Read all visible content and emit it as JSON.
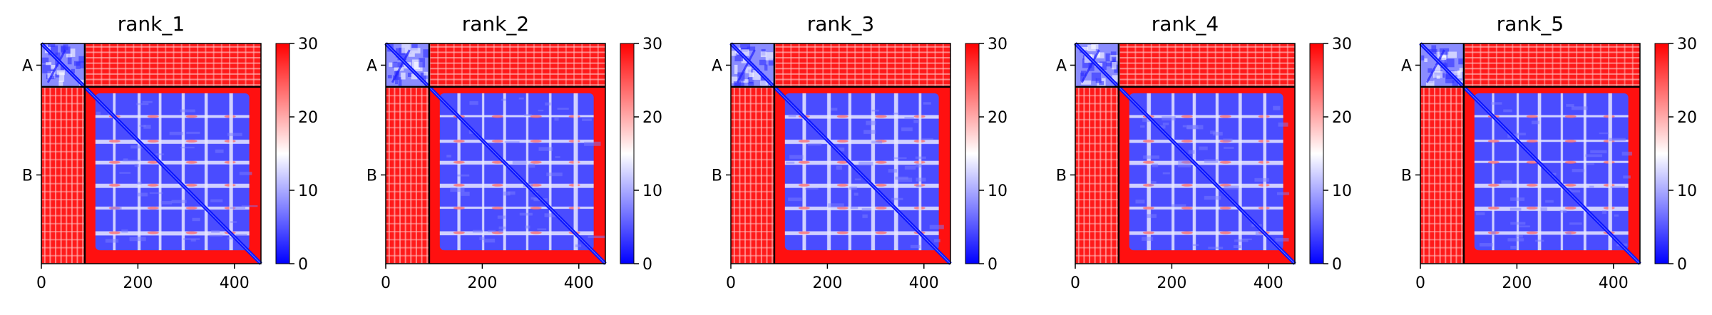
{
  "chart_data": [
    {
      "type": "heatmap",
      "title": "rank_1",
      "xlabel": "",
      "ylabel": "",
      "xlim": [
        0,
        455
      ],
      "x_ticks": [
        0,
        200,
        400
      ],
      "chains": [
        {
          "label": "A",
          "start": 0,
          "end": 90
        },
        {
          "label": "B",
          "start": 90,
          "end": 455
        }
      ],
      "boundary": 90,
      "colorbar": {
        "min": 0,
        "max": 30,
        "ticks": [
          0,
          10,
          20,
          30
        ],
        "colors": [
          "#0000ff",
          "#ffffff",
          "#ff0000"
        ]
      }
    },
    {
      "type": "heatmap",
      "title": "rank_2",
      "xlabel": "",
      "ylabel": "",
      "xlim": [
        0,
        455
      ],
      "x_ticks": [
        0,
        200,
        400
      ],
      "chains": [
        {
          "label": "A",
          "start": 0,
          "end": 90
        },
        {
          "label": "B",
          "start": 90,
          "end": 455
        }
      ],
      "boundary": 90,
      "colorbar": {
        "min": 0,
        "max": 30,
        "ticks": [
          0,
          10,
          20,
          30
        ],
        "colors": [
          "#0000ff",
          "#ffffff",
          "#ff0000"
        ]
      }
    },
    {
      "type": "heatmap",
      "title": "rank_3",
      "xlabel": "",
      "ylabel": "",
      "xlim": [
        0,
        455
      ],
      "x_ticks": [
        0,
        200,
        400
      ],
      "chains": [
        {
          "label": "A",
          "start": 0,
          "end": 90
        },
        {
          "label": "B",
          "start": 90,
          "end": 455
        }
      ],
      "boundary": 90,
      "colorbar": {
        "min": 0,
        "max": 30,
        "ticks": [
          0,
          10,
          20,
          30
        ],
        "colors": [
          "#0000ff",
          "#ffffff",
          "#ff0000"
        ]
      }
    },
    {
      "type": "heatmap",
      "title": "rank_4",
      "xlabel": "",
      "ylabel": "",
      "xlim": [
        0,
        455
      ],
      "x_ticks": [
        0,
        200,
        400
      ],
      "chains": [
        {
          "label": "A",
          "start": 0,
          "end": 90
        },
        {
          "label": "B",
          "start": 90,
          "end": 455
        }
      ],
      "boundary": 90,
      "colorbar": {
        "min": 0,
        "max": 30,
        "ticks": [
          0,
          10,
          20,
          30
        ],
        "colors": [
          "#0000ff",
          "#ffffff",
          "#ff0000"
        ]
      }
    },
    {
      "type": "heatmap",
      "title": "rank_5",
      "xlabel": "",
      "ylabel": "",
      "xlim": [
        0,
        455
      ],
      "x_ticks": [
        0,
        200,
        400
      ],
      "chains": [
        {
          "label": "A",
          "start": 0,
          "end": 90
        },
        {
          "label": "B",
          "start": 90,
          "end": 455
        }
      ],
      "boundary": 90,
      "colorbar": {
        "min": 0,
        "max": 30,
        "ticks": [
          0,
          10,
          20,
          30
        ],
        "colors": [
          "#0000ff",
          "#ffffff",
          "#ff0000"
        ]
      }
    }
  ]
}
